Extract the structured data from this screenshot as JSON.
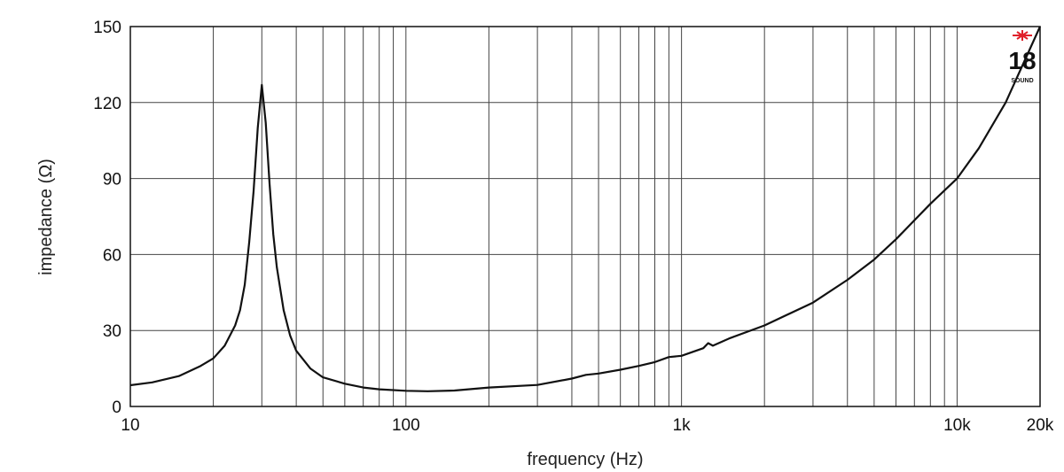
{
  "chart_data": {
    "type": "line",
    "xlabel": "frequency (Hz)",
    "ylabel": "impedance (Ω)",
    "xscale": "log",
    "xlim": [
      10,
      20000
    ],
    "ylim": [
      0,
      150
    ],
    "grid": true,
    "x_ticks": [
      {
        "value": 10,
        "label": "10"
      },
      {
        "value": 100,
        "label": "100"
      },
      {
        "value": 1000,
        "label": "1k"
      },
      {
        "value": 10000,
        "label": "10k"
      },
      {
        "value": 20000,
        "label": "20k"
      }
    ],
    "y_ticks": [
      {
        "value": 0,
        "label": "0"
      },
      {
        "value": 30,
        "label": "30"
      },
      {
        "value": 60,
        "label": "60"
      },
      {
        "value": 90,
        "label": "90"
      },
      {
        "value": 120,
        "label": "120"
      },
      {
        "value": 150,
        "label": "150"
      }
    ],
    "series": [
      {
        "color": "#111111",
        "x": [
          10,
          12,
          15,
          18,
          20,
          22,
          24,
          25,
          26,
          27,
          28,
          29,
          30,
          31,
          32,
          33,
          34,
          36,
          38,
          40,
          45,
          50,
          60,
          70,
          80,
          100,
          120,
          150,
          200,
          300,
          400,
          450,
          500,
          600,
          700,
          800,
          900,
          1000,
          1200,
          1250,
          1300,
          1500,
          2000,
          3000,
          4000,
          5000,
          6000,
          8000,
          10000,
          12000,
          15000,
          20000
        ],
        "y": [
          8.4,
          9.5,
          12,
          16,
          19,
          24,
          32,
          38,
          48,
          65,
          85,
          110,
          127,
          112,
          88,
          68,
          55,
          38,
          28,
          22,
          15,
          11.5,
          9,
          7.5,
          6.8,
          6.2,
          6,
          6.3,
          7.5,
          8.5,
          11,
          12.5,
          13,
          14.5,
          16,
          17.5,
          19.5,
          20,
          23,
          25,
          24,
          27,
          32,
          41,
          50,
          58,
          66,
          80,
          90,
          102,
          120,
          150
        ]
      }
    ],
    "logo": {
      "text": "18 SOUND",
      "accent": "#e0202a"
    }
  }
}
